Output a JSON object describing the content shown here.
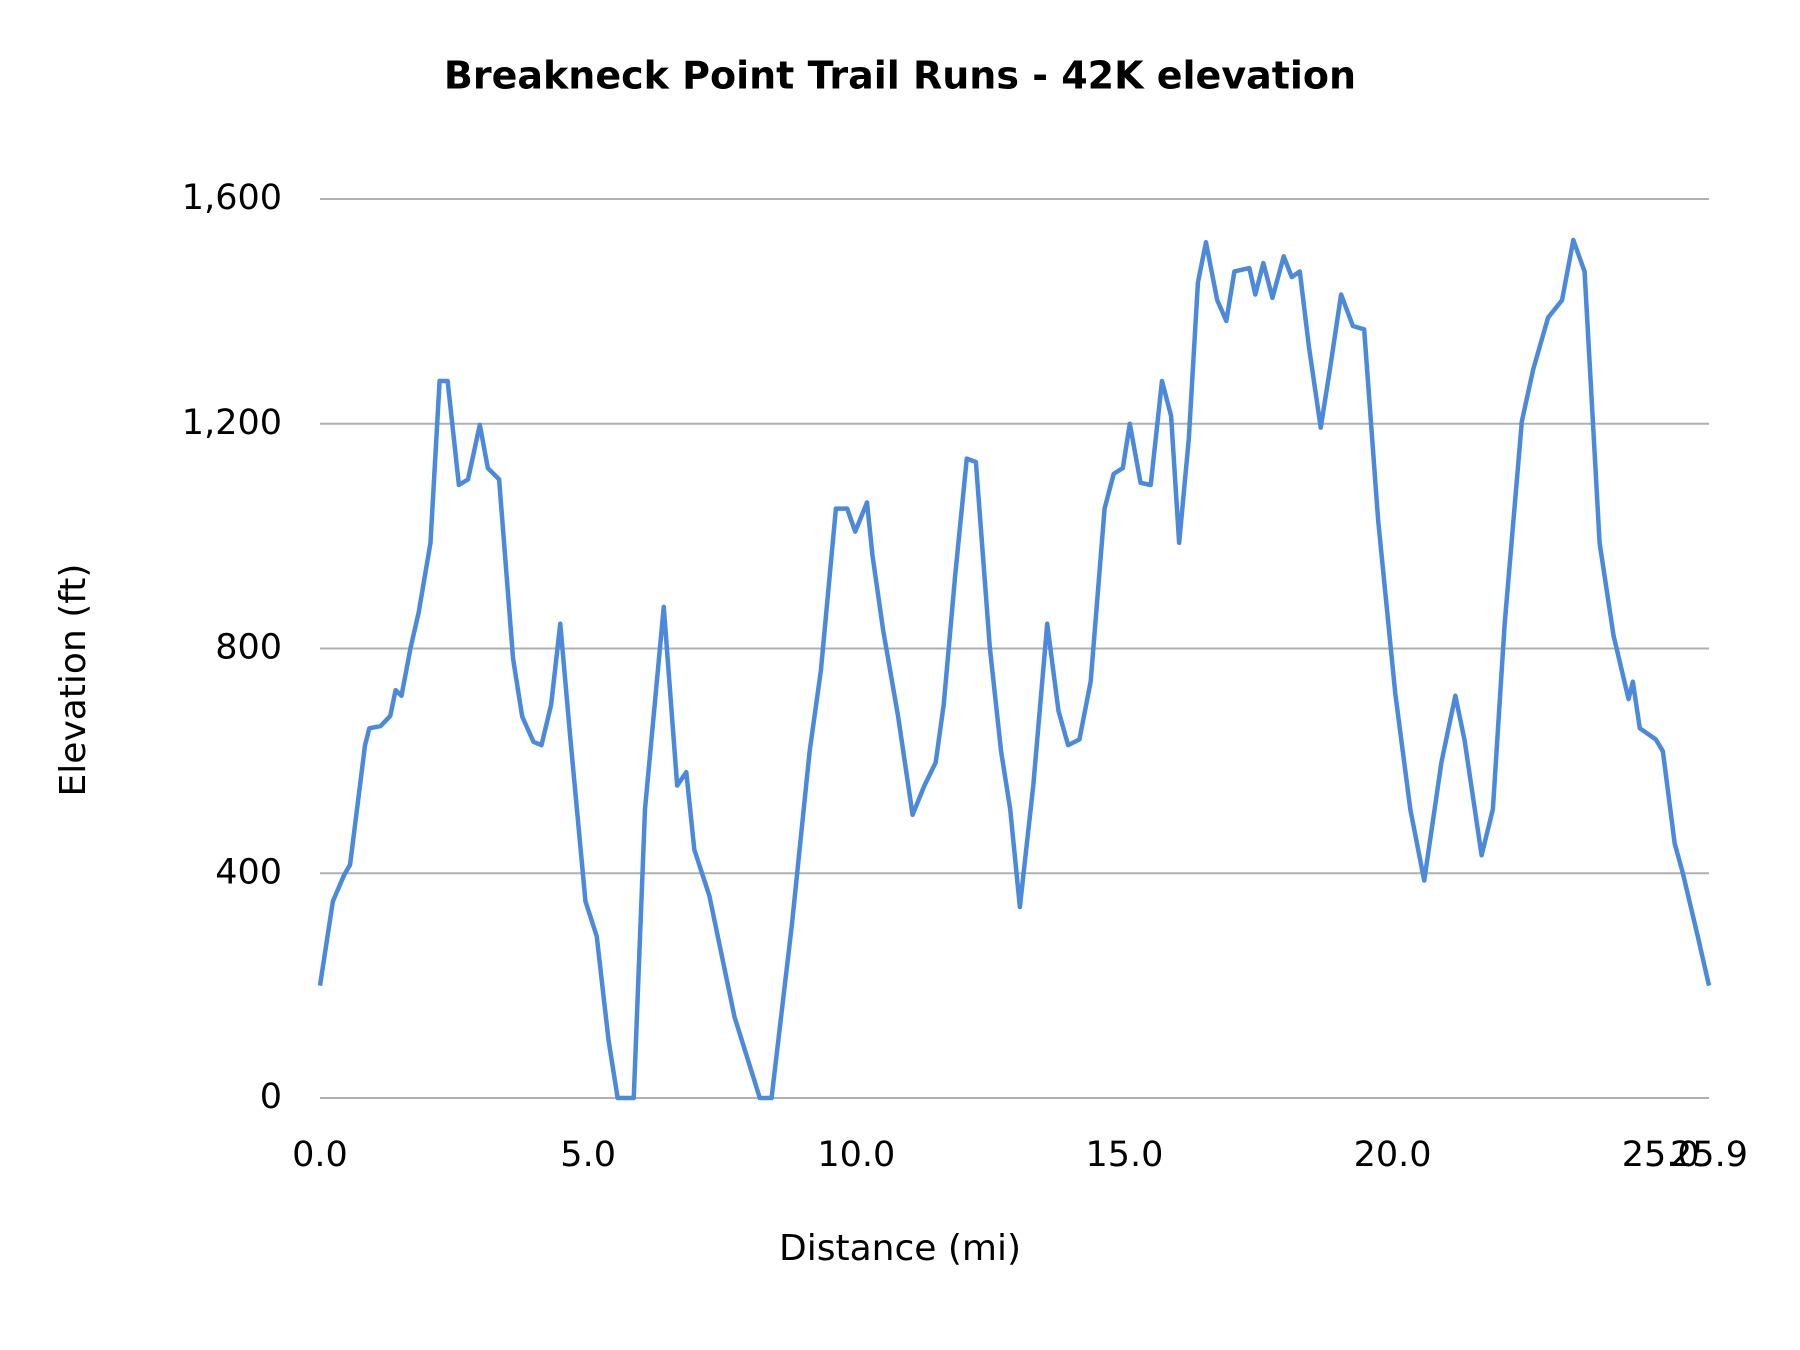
{
  "chart_data": {
    "type": "line",
    "title": "Breakneck Point Trail Runs - 42K elevation",
    "x_label": "Distance (mi)",
    "y_label": "Elevation (ft)",
    "xlim": [
      0,
      25.9
    ],
    "ylim": [
      0,
      1600
    ],
    "xticks": [
      {
        "value": 0,
        "label": "0.0"
      },
      {
        "value": 5,
        "label": "5.0"
      },
      {
        "value": 10,
        "label": "10.0"
      },
      {
        "value": 15,
        "label": "15.0"
      },
      {
        "value": 20,
        "label": "20.0"
      },
      {
        "value": 25,
        "label": "25.0"
      },
      25.9
    ],
    "yticks": [
      0,
      400,
      800,
      {
        "value": 1200,
        "label": "1,200"
      },
      {
        "value": 1600,
        "label": "1,600"
      }
    ],
    "grid": true,
    "x": [
      0,
      0.24,
      0.45,
      0.56,
      0.84,
      0.92,
      1.13,
      1.31,
      1.41,
      1.52,
      1.69,
      1.84,
      2.06,
      2.23,
      2.38,
      2.59,
      2.76,
      2.98,
      3.13,
      3.34,
      3.6,
      3.77,
      3.98,
      4.13,
      4.31,
      4.48,
      4.67,
      4.95,
      5.16,
      5.38,
      5.55,
      5.85,
      6.06,
      6.41,
      6.66,
      6.83,
      6.98,
      7.26,
      7.73,
      8.1,
      8.2,
      8.42,
      8.8,
      9.13,
      9.34,
      9.62,
      9.83,
      9.98,
      10.2,
      10.3,
      10.5,
      10.78,
      11.05,
      11.27,
      11.48,
      11.63,
      11.84,
      12.06,
      12.23,
      12.49,
      12.7,
      12.87,
      13.05,
      13.3,
      13.56,
      13.77,
      13.95,
      14.16,
      14.37,
      14.63,
      14.8,
      14.97,
      15.1,
      15.3,
      15.49,
      15.7,
      15.87,
      16.02,
      16.2,
      16.37,
      16.52,
      16.73,
      16.9,
      17.05,
      17.33,
      17.44,
      17.59,
      17.76,
      17.97,
      18.12,
      18.27,
      18.44,
      18.66,
      18.83,
      19.04,
      19.26,
      19.47,
      19.73,
      20.05,
      20.33,
      20.59,
      20.91,
      21.17,
      21.34,
      21.66,
      21.87,
      22.09,
      22.41,
      22.62,
      22.9,
      23.16,
      23.37,
      23.58,
      23.86,
      24.12,
      24.4,
      24.48,
      24.61,
      24.91,
      25.04,
      25.26,
      25.41,
      25.69,
      25.9
    ],
    "series": [
      {
        "name": "Elevation",
        "color": "#4a89dc",
        "values": [
          200,
          350,
          397,
          415,
          628,
          658,
          662,
          680,
          726,
          716,
          802,
          864,
          988,
          1276,
          1276,
          1091,
          1101,
          1198,
          1121,
          1101,
          782,
          679,
          634,
          628,
          700,
          844,
          638,
          350,
          288,
          103,
          0,
          0,
          514,
          874,
          556,
          580,
          442,
          360,
          144,
          31,
          0,
          0,
          309,
          617,
          761,
          1049,
          1049,
          1008,
          1060,
          967,
          833,
          679,
          504,
          556,
          597,
          700,
          926,
          1138,
          1132,
          802,
          617,
          514,
          340,
          556,
          844,
          689,
          628,
          638,
          741,
          1049,
          1111,
          1121,
          1200,
          1095,
          1091,
          1276,
          1214,
          988,
          1173,
          1451,
          1523,
          1420,
          1383,
          1471,
          1477,
          1430,
          1486,
          1424,
          1498,
          1461,
          1471,
          1337,
          1193,
          1296,
          1430,
          1374,
          1368,
          1029,
          720,
          514,
          387,
          597,
          716,
          638,
          432,
          514,
          844,
          1204,
          1296,
          1389,
          1420,
          1527,
          1471,
          988,
          823,
          710,
          741,
          658,
          638,
          617,
          453,
          401,
          288,
          200
        ]
      }
    ]
  }
}
